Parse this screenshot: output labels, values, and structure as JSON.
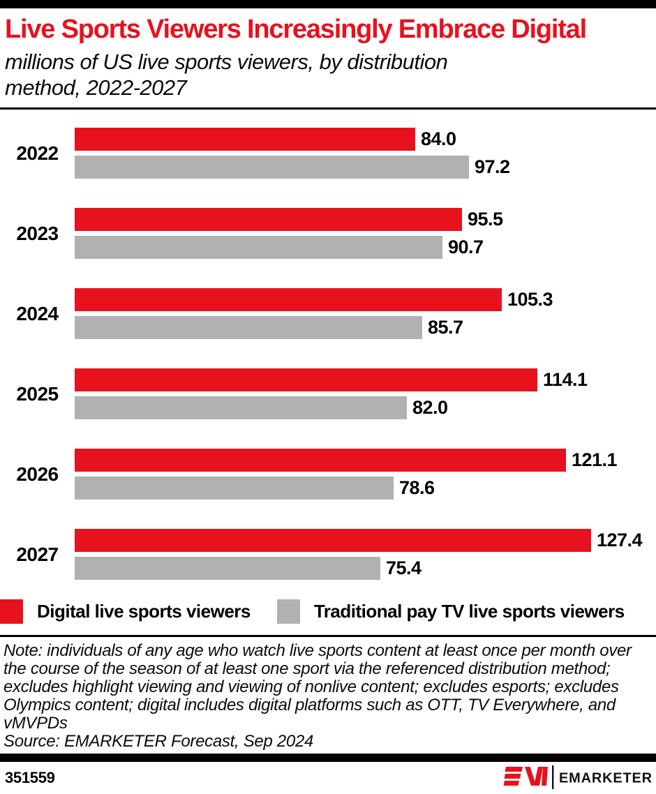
{
  "header": {
    "title": "Live Sports Viewers Increasingly Embrace Digital",
    "subtitle": "millions of US live sports viewers, by distribution\nmethod, 2022-2027"
  },
  "chart_data": {
    "type": "bar",
    "orientation": "horizontal",
    "title": "Live Sports Viewers Increasingly Embrace Digital",
    "subtitle": "millions of US live sports viewers, by distribution method, 2022-2027",
    "categories": [
      "2022",
      "2023",
      "2024",
      "2025",
      "2026",
      "2027"
    ],
    "series": [
      {
        "name": "Digital live sports viewers",
        "color": "#e8111e",
        "values": [
          84.0,
          95.5,
          105.3,
          114.1,
          121.1,
          127.4
        ]
      },
      {
        "name": "Traditional pay TV live sports viewers",
        "color": "#b1b1b3",
        "values": [
          97.2,
          90.7,
          85.7,
          82.0,
          78.6,
          75.4
        ]
      }
    ],
    "value_labels": "one_decimal",
    "unit": "millions",
    "xlim": [
      0,
      143
    ],
    "grid": false,
    "legend_position": "bottom"
  },
  "legend": {
    "items": [
      {
        "label": "Digital live sports viewers",
        "color": "#e8111e"
      },
      {
        "label": "Traditional pay TV live sports viewers",
        "color": "#b1b1b3"
      }
    ]
  },
  "footnote": {
    "note_text": "Note: individuals of any age who watch live sports content at least once per month over\nthe course of the season of at least one sport via the referenced distribution method;\nexcludes highlight viewing and viewing of nonlive content; excludes esports; excludes\nOlympics content; digital includes digital platforms such as OTT, TV Everywhere, and\nvMVPDs",
    "source_text": "Source: EMARKETER Forecast, Sep 2024"
  },
  "footer": {
    "chart_id": "351559",
    "brand_name": "EMARKETER"
  },
  "colors": {
    "accent_red": "#e8111e",
    "bar_gray": "#b1b1b3",
    "band_black": "#000000"
  }
}
